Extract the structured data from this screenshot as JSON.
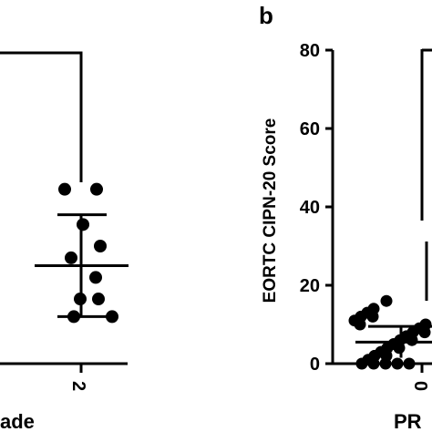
{
  "chart_data": [
    {
      "type": "scatter",
      "panel": "",
      "xlabel": "ade",
      "ylabel": "",
      "categories": [
        "2"
      ],
      "points": [
        {
          "x": "2",
          "y": 44.5
        },
        {
          "x": "2",
          "y": 44.5
        },
        {
          "x": "2",
          "y": 35.5
        },
        {
          "x": "2",
          "y": 30.0
        },
        {
          "x": "2",
          "y": 27.0
        },
        {
          "x": "2",
          "y": 22.0
        },
        {
          "x": "2",
          "y": 16.5
        },
        {
          "x": "2",
          "y": 16.5
        },
        {
          "x": "2",
          "y": 12.0
        },
        {
          "x": "2",
          "y": 12.0
        }
      ],
      "mean": 25.0,
      "sd_upper": 38.0,
      "sd_lower": 12.0,
      "bracket_y": 80
    },
    {
      "type": "scatter",
      "panel": "b",
      "xlabel": "PR",
      "ylabel": "EORTC CIPN-20 Score",
      "categories": [
        "0"
      ],
      "yticks": [
        0,
        20,
        40,
        60,
        80
      ],
      "ylim": [
        0,
        80
      ],
      "mean": 5.5,
      "sd_upper": 9.5,
      "sd_lower": 1.5,
      "bracket_y": 80,
      "points": [
        {
          "x": "0",
          "y": 16
        },
        {
          "x": "0",
          "y": 14
        },
        {
          "x": "0",
          "y": 13
        },
        {
          "x": "0",
          "y": 12
        },
        {
          "x": "0",
          "y": 12
        },
        {
          "x": "0",
          "y": 11
        },
        {
          "x": "0",
          "y": 10
        },
        {
          "x": "0",
          "y": 10
        },
        {
          "x": "0",
          "y": 9
        },
        {
          "x": "0",
          "y": 8
        },
        {
          "x": "0",
          "y": 8
        },
        {
          "x": "0",
          "y": 7
        },
        {
          "x": "0",
          "y": 6
        },
        {
          "x": "0",
          "y": 6
        },
        {
          "x": "0",
          "y": 5
        },
        {
          "x": "0",
          "y": 4
        },
        {
          "x": "0",
          "y": 4
        },
        {
          "x": "0",
          "y": 3
        },
        {
          "x": "0",
          "y": 2
        },
        {
          "x": "0",
          "y": 2
        },
        {
          "x": "0",
          "y": 1
        },
        {
          "x": "0",
          "y": 0
        },
        {
          "x": "0",
          "y": 0
        },
        {
          "x": "0",
          "y": 0
        },
        {
          "x": "0",
          "y": 0
        },
        {
          "x": "0",
          "y": 0
        }
      ]
    }
  ]
}
